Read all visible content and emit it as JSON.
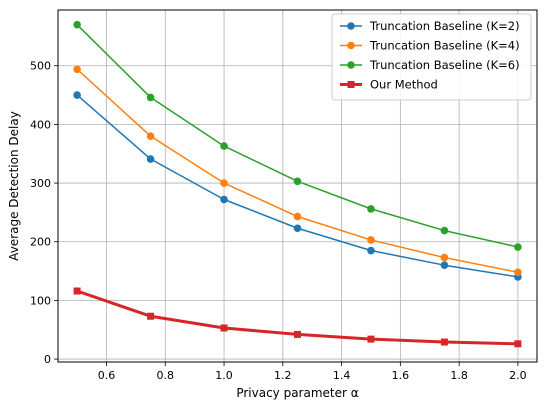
{
  "chart_data": {
    "type": "line",
    "title": "",
    "xlabel": "Privacy parameter α",
    "ylabel": "Average Detection Delay",
    "xlim": [
      0.435,
      2.065
    ],
    "ylim": [
      -5,
      595
    ],
    "x_ticks": [
      "0.6",
      "0.8",
      "1.0",
      "1.2",
      "1.4",
      "1.6",
      "1.8",
      "2.0"
    ],
    "y_ticks": [
      "0",
      "100",
      "200",
      "300",
      "400",
      "500"
    ],
    "grid": true,
    "legend_position": "top-right",
    "x": [
      0.5,
      0.75,
      1.0,
      1.25,
      1.5,
      1.75,
      2.0
    ],
    "series": [
      {
        "name": "Truncation Baseline (K=2)",
        "color": "#1f77b4",
        "marker": "circle",
        "width": 1.5,
        "values": [
          450,
          341,
          272,
          223,
          185,
          160,
          140
        ]
      },
      {
        "name": "Truncation Baseline (K=4)",
        "color": "#ff7f0e",
        "marker": "circle",
        "width": 1.5,
        "values": [
          494,
          380,
          300,
          243,
          203,
          173,
          148
        ]
      },
      {
        "name": "Truncation Baseline (K=6)",
        "color": "#2ca02c",
        "marker": "circle",
        "width": 1.5,
        "values": [
          570,
          446,
          363,
          303,
          256,
          219,
          191
        ]
      },
      {
        "name": "Our Method",
        "color": "#d62728",
        "marker": "square",
        "width": 3,
        "values": [
          116,
          73,
          53,
          42,
          34,
          29,
          26
        ]
      }
    ]
  }
}
